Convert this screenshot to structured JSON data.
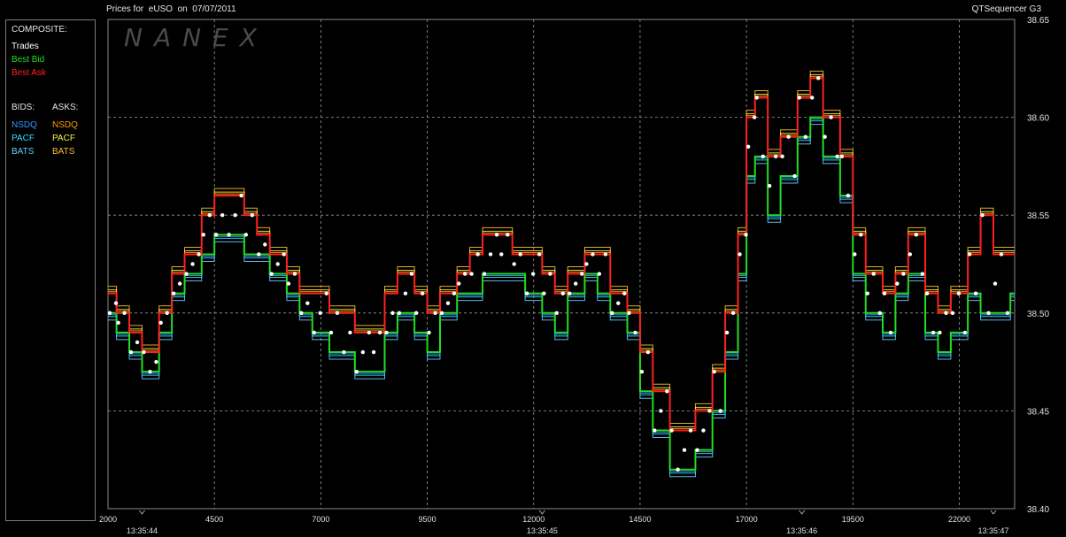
{
  "header": {
    "title": "Prices for  eUSO  on  07/07/2011",
    "app": "QTSequencer G3"
  },
  "watermark": "NANEX",
  "legend": {
    "composite_label": "COMPOSITE:",
    "trades": "Trades",
    "best_bid": "Best Bid",
    "best_ask": "Best Ask",
    "bids_label": "BIDS:",
    "asks_label": "ASKS:",
    "bids": [
      "NSDQ",
      "PACF",
      "BATS"
    ],
    "asks": [
      "NSDQ",
      "PACF",
      "BATS"
    ]
  },
  "colors": {
    "trades": "#ffffff",
    "best_bid": "#22dd22",
    "best_ask": "#ff2020",
    "bid_nsdq": "#3399ff",
    "bid_pacf": "#33ddff",
    "bid_bats": "#66ccff",
    "ask_nsdq": "#ff9900",
    "ask_pacf": "#ffee44",
    "ask_bats": "#ffbb33",
    "grid": "#9a9a9a"
  },
  "chart_data": {
    "type": "line",
    "title": "Prices for  eUSO  on  07/07/2011",
    "xlim": [
      2000,
      23300
    ],
    "ylim": [
      38.4,
      38.65
    ],
    "y_ticks": [
      "38.40",
      "38.45",
      "38.50",
      "38.55",
      "38.60",
      "38.65"
    ],
    "x_ticks": [
      "2000",
      "4500",
      "7000",
      "9500",
      "12000",
      "14500",
      "17000",
      "19500",
      "22000"
    ],
    "time_ticks": [
      {
        "x": 2800,
        "label": "13:35:44"
      },
      {
        "x": 12200,
        "label": "13:35:45"
      },
      {
        "x": 18300,
        "label": "13:35:46"
      },
      {
        "x": 22800,
        "label": "13:35:47"
      }
    ],
    "grid": true,
    "series": [
      {
        "name": "Best Bid",
        "x": [
          2000,
          2200,
          2500,
          2800,
          3200,
          3500,
          3800,
          4200,
          4500,
          4800,
          5200,
          5500,
          5800,
          6200,
          6500,
          6800,
          7200,
          7500,
          7800,
          8200,
          8500,
          8800,
          9200,
          9500,
          9800,
          10200,
          10500,
          10800,
          11200,
          11500,
          11800,
          12200,
          12500,
          12800,
          13200,
          13500,
          13800,
          14200,
          14500,
          14800,
          15200,
          15500,
          15800,
          16200,
          16500,
          16800,
          17000,
          17200,
          17500,
          17800,
          18200,
          18500,
          18800,
          19200,
          19500,
          19800,
          20200,
          20500,
          20800,
          21200,
          21500,
          21800,
          22200,
          22500,
          22800,
          23200
        ],
        "values": [
          38.5,
          38.49,
          38.48,
          38.47,
          38.49,
          38.51,
          38.52,
          38.53,
          38.54,
          38.54,
          38.53,
          38.53,
          38.52,
          38.51,
          38.5,
          38.49,
          38.48,
          38.48,
          38.47,
          38.47,
          38.49,
          38.5,
          38.49,
          38.48,
          38.5,
          38.51,
          38.51,
          38.52,
          38.52,
          38.52,
          38.51,
          38.5,
          38.49,
          38.51,
          38.52,
          38.51,
          38.5,
          38.49,
          38.46,
          38.44,
          38.42,
          38.42,
          38.43,
          38.45,
          38.48,
          38.52,
          38.57,
          38.58,
          38.55,
          38.57,
          38.59,
          38.6,
          38.58,
          38.56,
          38.52,
          38.5,
          38.49,
          38.51,
          38.52,
          38.49,
          38.48,
          38.49,
          38.51,
          38.5,
          38.5,
          38.51
        ]
      },
      {
        "name": "Best Ask",
        "x": [
          2000,
          2200,
          2500,
          2800,
          3200,
          3500,
          3800,
          4200,
          4500,
          4800,
          5200,
          5500,
          5800,
          6200,
          6500,
          6800,
          7200,
          7500,
          7800,
          8200,
          8500,
          8800,
          9200,
          9500,
          9800,
          10200,
          10500,
          10800,
          11200,
          11500,
          11800,
          12200,
          12500,
          12800,
          13200,
          13500,
          13800,
          14200,
          14500,
          14800,
          15200,
          15500,
          15800,
          16200,
          16500,
          16800,
          17000,
          17200,
          17500,
          17800,
          18200,
          18500,
          18800,
          19200,
          19500,
          19800,
          20200,
          20500,
          20800,
          21200,
          21500,
          21800,
          22200,
          22500,
          22800,
          23200
        ],
        "values": [
          38.51,
          38.5,
          38.49,
          38.48,
          38.5,
          38.52,
          38.53,
          38.55,
          38.56,
          38.56,
          38.55,
          38.54,
          38.53,
          38.52,
          38.51,
          38.51,
          38.5,
          38.5,
          38.49,
          38.49,
          38.51,
          38.52,
          38.51,
          38.5,
          38.51,
          38.52,
          38.53,
          38.54,
          38.54,
          38.53,
          38.53,
          38.52,
          38.51,
          38.52,
          38.53,
          38.53,
          38.51,
          38.5,
          38.48,
          38.46,
          38.44,
          38.44,
          38.45,
          38.47,
          38.5,
          38.54,
          38.6,
          38.61,
          38.58,
          38.59,
          38.61,
          38.62,
          38.6,
          38.58,
          38.54,
          38.52,
          38.51,
          38.52,
          38.54,
          38.51,
          38.5,
          38.51,
          38.53,
          38.55,
          38.53,
          38.53
        ]
      }
    ]
  }
}
